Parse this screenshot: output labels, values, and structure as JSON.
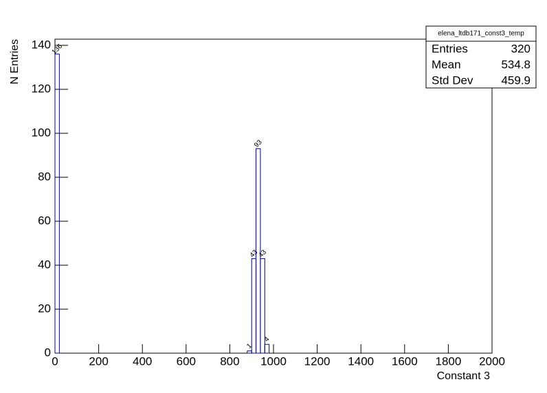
{
  "chart_data": {
    "type": "histogram",
    "x_label": "Constant 3",
    "y_label": "N Entries",
    "bins": [
      0,
      20,
      40,
      60,
      80,
      100,
      120,
      140,
      160,
      180,
      200,
      220,
      240,
      260,
      280,
      300,
      320,
      340,
      360,
      380,
      400,
      420,
      440,
      460,
      480,
      500,
      520,
      540,
      560,
      580,
      600,
      620,
      640,
      660,
      680,
      700,
      720,
      740,
      760,
      780,
      800,
      820,
      840,
      860,
      880,
      900,
      920,
      940,
      960,
      980,
      1000,
      1020,
      1040,
      1060,
      1080,
      1100,
      1120,
      1140,
      1160,
      1180,
      1200,
      1220,
      1240,
      1260,
      1280,
      1300,
      1320,
      1340,
      1360,
      1380,
      1400,
      1420,
      1440,
      1460,
      1480,
      1500,
      1520,
      1540,
      1560,
      1580,
      1600,
      1620,
      1640,
      1660,
      1680,
      1700,
      1720,
      1740,
      1760,
      1780,
      1800,
      1820,
      1840,
      1860,
      1880,
      1900,
      1920,
      1940,
      1960,
      1980,
      2000
    ],
    "counts": [
      136,
      0,
      0,
      0,
      0,
      0,
      0,
      0,
      0,
      0,
      0,
      0,
      0,
      0,
      0,
      0,
      0,
      0,
      0,
      0,
      0,
      0,
      0,
      0,
      0,
      0,
      0,
      0,
      0,
      0,
      0,
      0,
      0,
      0,
      0,
      0,
      0,
      0,
      0,
      0,
      0,
      0,
      0,
      0,
      1,
      43,
      93,
      43,
      4,
      0,
      0,
      0,
      0,
      0,
      0,
      0,
      0,
      0,
      0,
      0,
      0,
      0,
      0,
      0,
      0,
      0,
      0,
      0,
      0,
      0,
      0,
      0,
      0,
      0,
      0,
      0,
      0,
      0,
      0,
      0,
      0,
      0,
      0,
      0,
      0,
      0,
      0,
      0,
      0,
      0,
      0,
      0,
      0,
      0,
      0,
      0,
      0,
      0,
      0,
      0
    ],
    "color": "#000080",
    "xlim": [
      0,
      2000
    ],
    "xticks": [
      0,
      200,
      400,
      600,
      800,
      1000,
      1200,
      1400,
      1600,
      1800,
      2000
    ],
    "ylim": [
      0,
      142.8
    ],
    "yticks": [
      0,
      20,
      40,
      60,
      80,
      100,
      120,
      140
    ],
    "stats": {
      "title": "elena_ltdb171_const3_temp",
      "rows": [
        {
          "label": "Entries",
          "value": 320
        },
        {
          "label": "Mean",
          "value": 534.8
        },
        {
          "label": "Std Dev",
          "value": 459.9
        }
      ]
    }
  }
}
